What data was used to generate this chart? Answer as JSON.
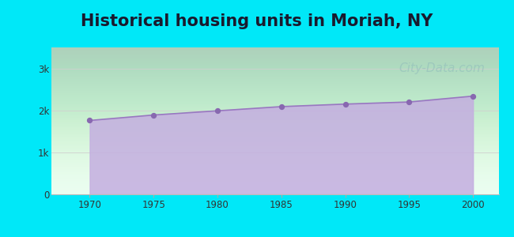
{
  "title": "Historical housing units in Moriah, NY",
  "title_fontsize": 15,
  "title_fontweight": "bold",
  "background_color": "#00e8f8",
  "fill_color": "#c4aee0",
  "fill_alpha": 0.85,
  "line_color": "#9878c0",
  "marker_color": "#8868b0",
  "marker_size": 18,
  "years": [
    1970,
    1975,
    1980,
    1985,
    1990,
    1995,
    2000
  ],
  "values": [
    1760,
    1890,
    1990,
    2090,
    2150,
    2200,
    2340
  ],
  "ylim": [
    0,
    3500
  ],
  "ytick_values": [
    0,
    1000,
    2000,
    3000
  ],
  "ytick_labels": [
    "0",
    "1k",
    "2k",
    "3k"
  ],
  "xtick_values": [
    1970,
    1975,
    1980,
    1985,
    1990,
    1995,
    2000
  ],
  "xlim": [
    1967,
    2002
  ],
  "grid_color": "#d0d0d0",
  "watermark_text": "City-Data.com",
  "watermark_color": "#90bbbb",
  "watermark_alpha": 0.55,
  "watermark_fontsize": 11
}
